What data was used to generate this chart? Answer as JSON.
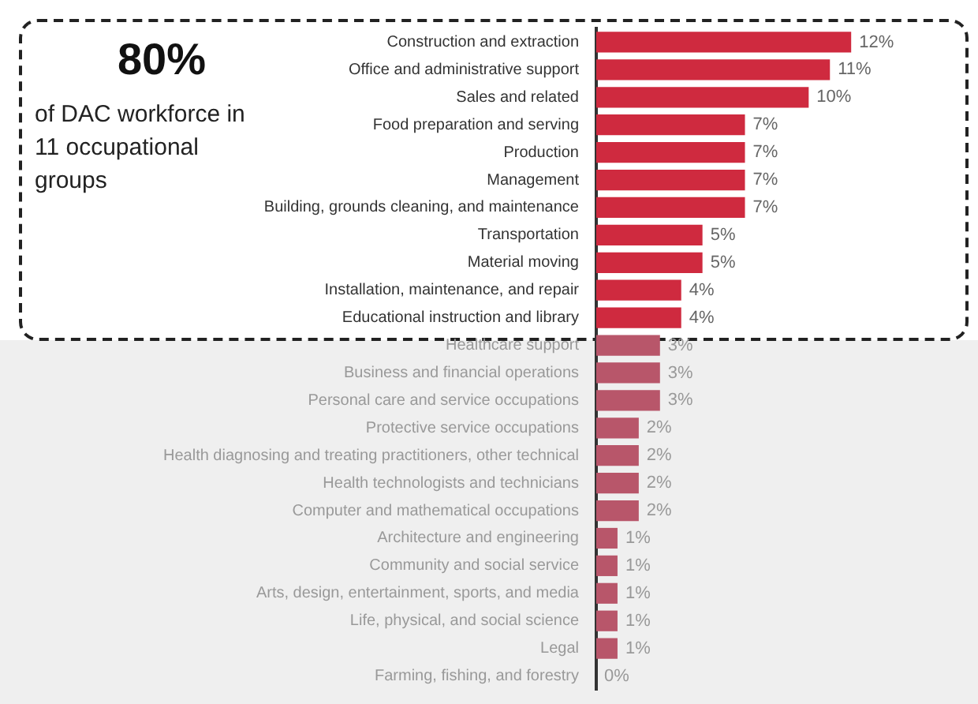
{
  "chart_data": {
    "type": "bar",
    "orientation": "horizontal",
    "tick_labels": "y",
    "categories": [
      "Construction and extraction",
      "Office and administrative support",
      "Sales and related",
      "Food preparation and serving",
      "Production",
      "Management",
      "Building, grounds cleaning, and maintenance",
      "Transportation",
      "Material moving",
      "Installation, maintenance, and repair",
      "Educational instruction and library",
      "Healthcare support",
      "Business and financial operations",
      "Personal care and service occupations",
      "Protective service occupations",
      "Health diagnosing and treating practitioners, other technical",
      "Health technologists and technicians",
      "Computer and mathematical occupations",
      "Architecture and engineering",
      "Community and social service",
      "Arts, design, entertainment, sports, and media",
      "Life, physical, and social science",
      "Legal",
      "Farming, fishing, and forestry"
    ],
    "values": [
      12,
      11,
      10,
      7,
      7,
      7,
      7,
      5,
      5,
      4,
      4,
      3,
      3,
      3,
      2,
      2,
      2,
      2,
      1,
      1,
      1,
      1,
      1,
      0
    ],
    "value_labels": [
      "12%",
      "11%",
      "10%",
      "7%",
      "7%",
      "7%",
      "7%",
      "5%",
      "5%",
      "4%",
      "4%",
      "3%",
      "3%",
      "3%",
      "2%",
      "2%",
      "2%",
      "2%",
      "1%",
      "1%",
      "1%",
      "1%",
      "1%",
      "0%"
    ],
    "colors": [
      "#cf2a3f",
      "#cf2a3f",
      "#cf2a3f",
      "#cf2a3f",
      "#cf2a3f",
      "#cf2a3f",
      "#cf2a3f",
      "#cf2a3f",
      "#cf2a3f",
      "#cf2a3f",
      "#cf2a3f",
      "#b8566a",
      "#b8566a",
      "#b8566a",
      "#b8566a",
      "#b8566a",
      "#b8566a",
      "#b8566a",
      "#b8566a",
      "#b8566a",
      "#b8566a",
      "#b8566a",
      "#b8566a",
      "#b8566a"
    ],
    "annotations": [
      "80%",
      "of DAC workforce in 11 occupational groups"
    ],
    "legend": false
  }
}
